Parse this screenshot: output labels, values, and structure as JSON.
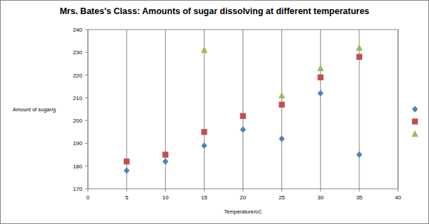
{
  "chart_data": {
    "type": "scatter",
    "title": "Mrs. Bates's Class: Amounts of sugar dissolving at different temperatures",
    "x_label": "Temperature/oC",
    "y_label": "Amount of sugar/g",
    "xlim": [
      0,
      40
    ],
    "xticks": [
      0,
      5,
      10,
      15,
      20,
      25,
      30,
      35,
      40
    ],
    "ylim": [
      170,
      240
    ],
    "yticks": [
      170,
      180,
      190,
      200,
      210,
      220,
      230,
      240
    ],
    "grid": "x",
    "legend": "right",
    "series": [
      {
        "color": "#4f81bd",
        "marker": "diamond",
        "x": [
          5,
          10,
          15,
          20,
          25,
          30,
          35
        ],
        "values": [
          178,
          182,
          189,
          196,
          192,
          212,
          185
        ]
      },
      {
        "color": "#c0504d",
        "marker": "square",
        "x": [
          5,
          10,
          15,
          20,
          25,
          30,
          35
        ],
        "values": [
          182,
          185,
          195,
          202,
          207,
          219,
          228
        ]
      },
      {
        "color": "#9bbb59",
        "marker": "triangle",
        "x": [
          15,
          25,
          30,
          35
        ],
        "values": [
          231,
          211,
          223,
          232
        ]
      }
    ]
  }
}
